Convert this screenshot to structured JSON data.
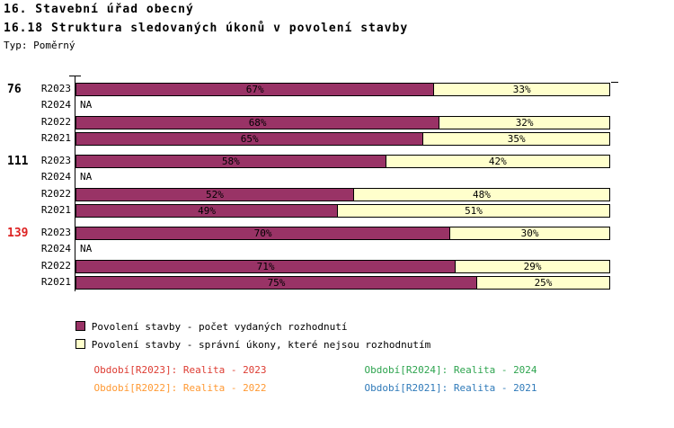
{
  "header": {
    "title_line1": "16. Stavební úřad obecný",
    "title_line2": "16.18 Struktura sledovaných úkonů v povolení stavby",
    "type_label": "Typ: Poměrný"
  },
  "chart_data": {
    "type": "bar",
    "subtype": "horizontal-stacked-percent",
    "xlim": [
      0,
      100
    ],
    "unit": "%",
    "grid": false,
    "na_text": "NA",
    "series": [
      {
        "name": "Povolení stavby - počet vydaných rozhodnutí",
        "color": "#993366"
      },
      {
        "name": "Povolení stavby - správní úkony, které nejsou rozhodnutím",
        "color": "#ffffcc"
      }
    ],
    "groups": [
      {
        "label": "76",
        "label_color": "#000000",
        "rows": [
          {
            "period": "R2023",
            "values": [
              67,
              33
            ]
          },
          {
            "period": "R2024",
            "na": true
          },
          {
            "period": "R2022",
            "values": [
              68,
              32
            ]
          },
          {
            "period": "R2021",
            "values": [
              65,
              35
            ]
          }
        ]
      },
      {
        "label": "111",
        "label_color": "#000000",
        "rows": [
          {
            "period": "R2023",
            "values": [
              58,
              42
            ]
          },
          {
            "period": "R2024",
            "na": true
          },
          {
            "period": "R2022",
            "values": [
              52,
              48
            ]
          },
          {
            "period": "R2021",
            "values": [
              49,
              51
            ]
          }
        ]
      },
      {
        "label": "139",
        "label_color": "#dd2222",
        "rows": [
          {
            "period": "R2023",
            "values": [
              70,
              30
            ]
          },
          {
            "period": "R2024",
            "na": true
          },
          {
            "period": "R2022",
            "values": [
              71,
              29
            ]
          },
          {
            "period": "R2021",
            "values": [
              75,
              25
            ]
          }
        ]
      }
    ]
  },
  "period_legend": {
    "items": [
      {
        "text": "Období[R2023]: Realita - 2023",
        "color": "#dd3c32"
      },
      {
        "text": "Období[R2024]: Realita - 2024",
        "color": "#2ea44f"
      },
      {
        "text": "Období[R2022]: Realita - 2022",
        "color": "#ff9933"
      },
      {
        "text": "Období[R2021]: Realita - 2021",
        "color": "#2f7ab9"
      }
    ]
  }
}
